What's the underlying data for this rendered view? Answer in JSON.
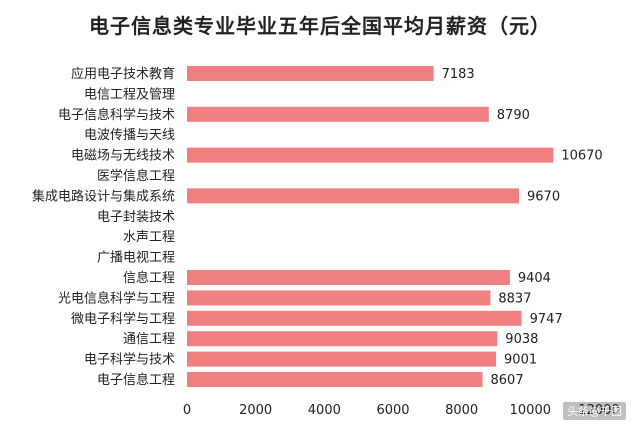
{
  "title": "电子信息类专业毕业五年后全国平均月薪资（元）",
  "watermark": "头条@千图",
  "chart_data": {
    "type": "bar",
    "orientation": "horizontal",
    "title": "电子信息类专业毕业五年后全国平均月薪资（元）",
    "categories": [
      "应用电子技术教育",
      "电信工程及管理",
      "电子信息科学与技术",
      "电波传播与天线",
      "电磁场与无线技术",
      "医学信息工程",
      "集成电路设计与集成系统",
      "电子封装技术",
      "水声工程",
      "广播电视工程",
      "信息工程",
      "光电信息科学与工程",
      "微电子科学与工程",
      "通信工程",
      "电子科学与技术",
      "电子信息工程"
    ],
    "values": [
      7183,
      null,
      8790,
      null,
      10670,
      null,
      9670,
      null,
      null,
      null,
      9404,
      8837,
      9747,
      9038,
      9001,
      8607
    ],
    "xlim": [
      0,
      12000
    ],
    "xticks": [
      "0",
      "2000",
      "4000",
      "6000",
      "8000",
      "10000",
      "12000"
    ],
    "bar_color": "#f08080",
    "grid": false,
    "data_labels": true
  }
}
